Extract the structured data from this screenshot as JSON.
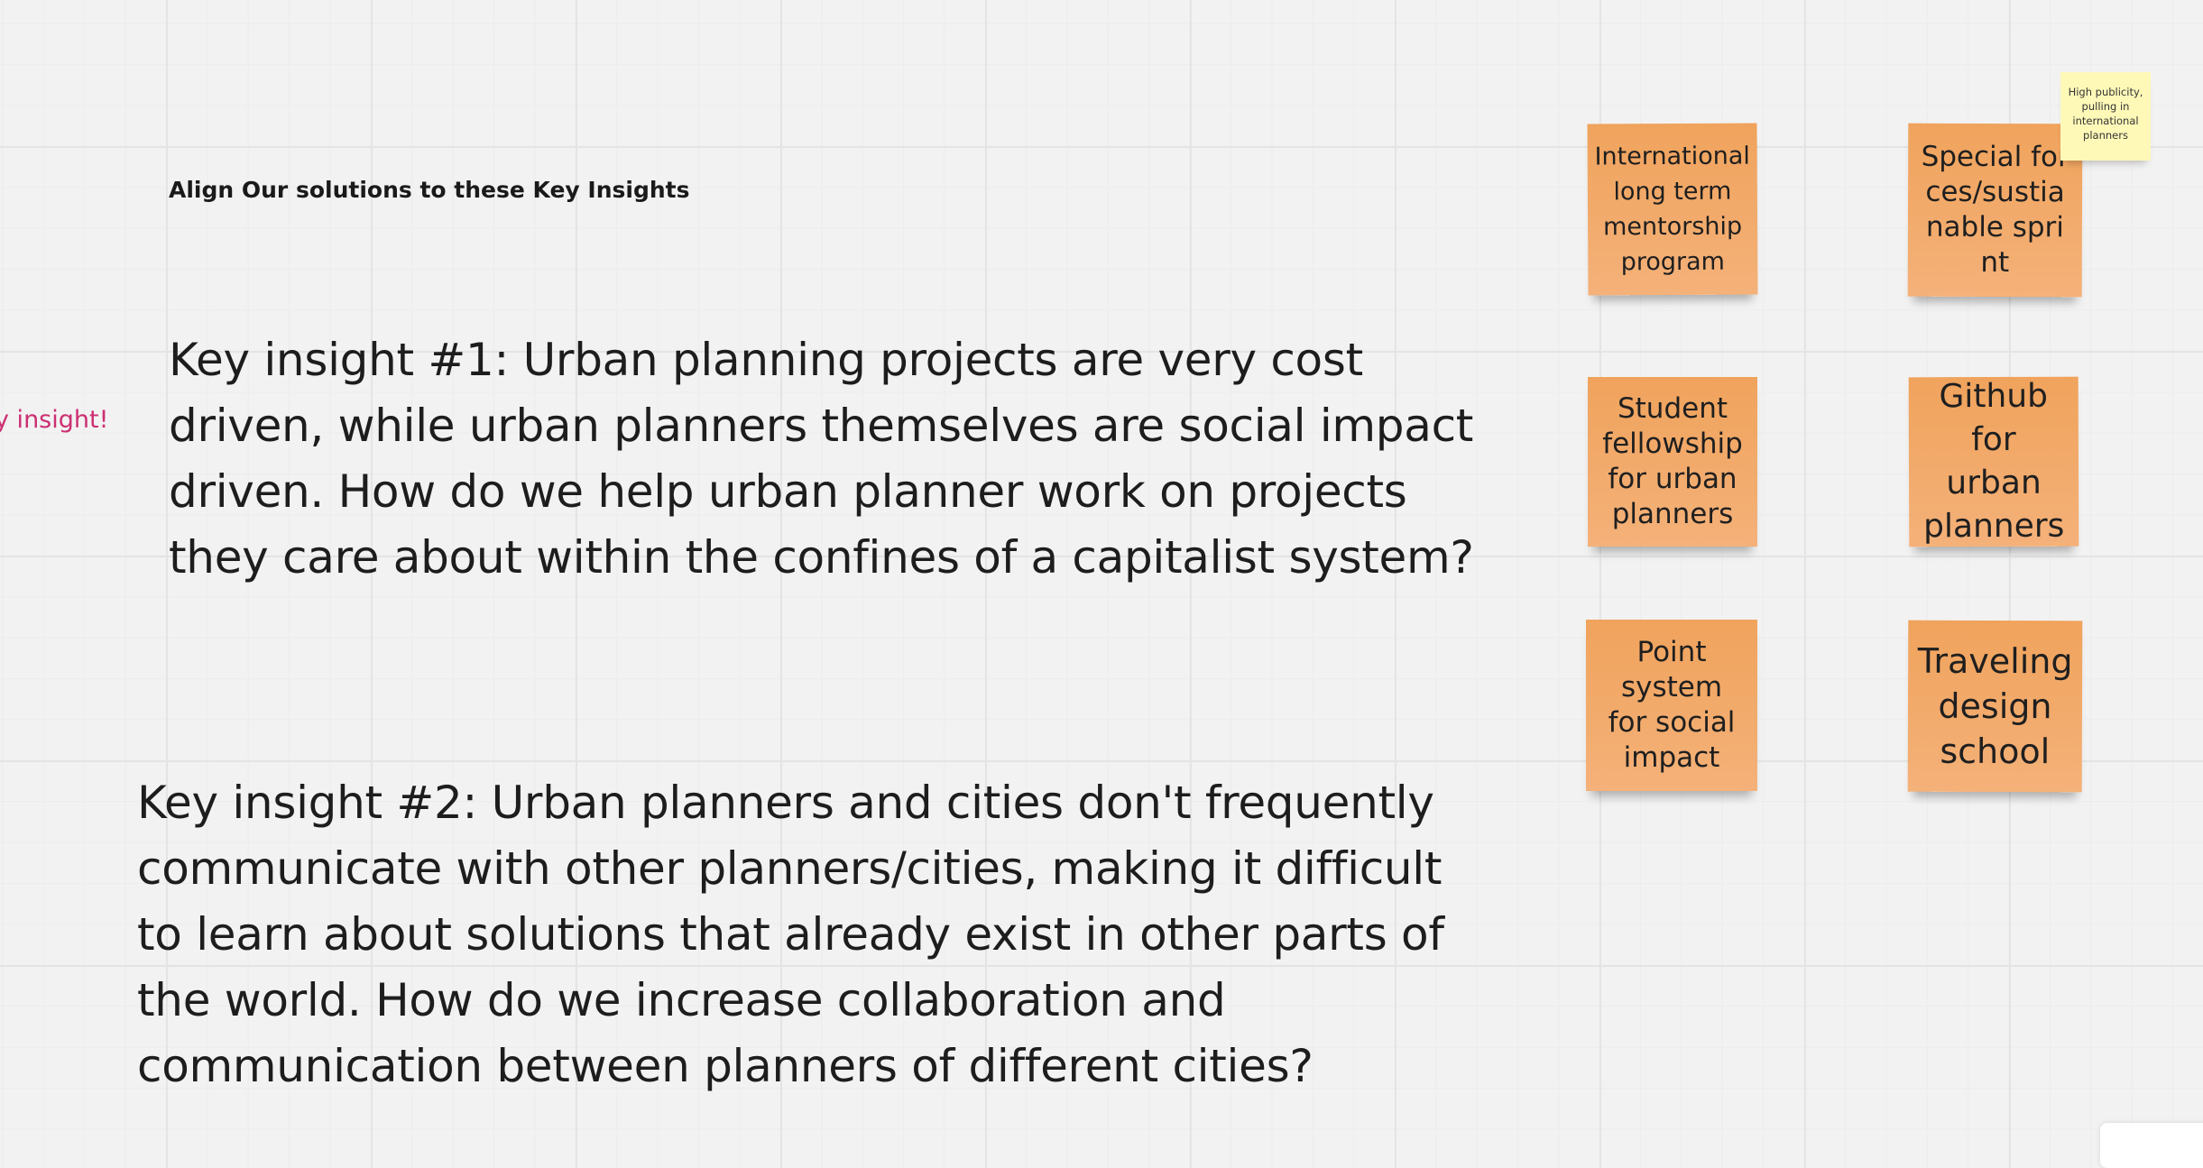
{
  "board": {
    "heading": "Align Our solutions to these Key Insights",
    "side_label": "y insight!",
    "insights": [
      "Key insight #1: Urban planning projects are very cost driven, while urban planners themselves are social impact driven. How do we help urban planner work on projects they care about within the confines of a capitalist system?",
      "Key insight #2: Urban planners and cities don't frequently communicate with other planners/cities, making it difficult to learn about solutions that already exist in other parts of the world. How do we increase collaboration and communication between planners of different cities?"
    ],
    "stickies": [
      "International long term mentorship program",
      "Special forces/sustianable sprint",
      "Student fellowship for urban planners",
      "Github for urban planners",
      "Point system for social impact",
      "Traveling design school"
    ],
    "yellow_note": "High publicity, pulling in international planners"
  },
  "colors": {
    "background": "#f2f2f2",
    "sticky_orange": "#f2a866",
    "sticky_yellow": "#fff9b8",
    "accent_pink": "#cc2f72"
  }
}
